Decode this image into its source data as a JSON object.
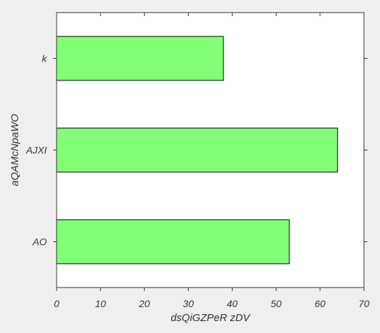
{
  "chart_data": {
    "type": "bar",
    "orientation": "horizontal",
    "title": "",
    "xlabel": "dsQiGZPeR zDV",
    "ylabel": "aQAMcNpaWO",
    "categories": [
      "k",
      "AJXI",
      "AO"
    ],
    "values": [
      38,
      64,
      53
    ],
    "xlim": [
      0,
      70
    ],
    "xticks": [
      0,
      10,
      20,
      30,
      40,
      50,
      60,
      70
    ],
    "xtick_labels": [
      "0",
      "10",
      "20",
      "30",
      "40",
      "50",
      "60",
      "70"
    ],
    "grid": false,
    "colors": {
      "bar_fill": "#80ff77",
      "bar_edge": "#000000",
      "plot_background": "#ffffff",
      "figure_background": "#efefef",
      "axis": "#333333"
    }
  }
}
